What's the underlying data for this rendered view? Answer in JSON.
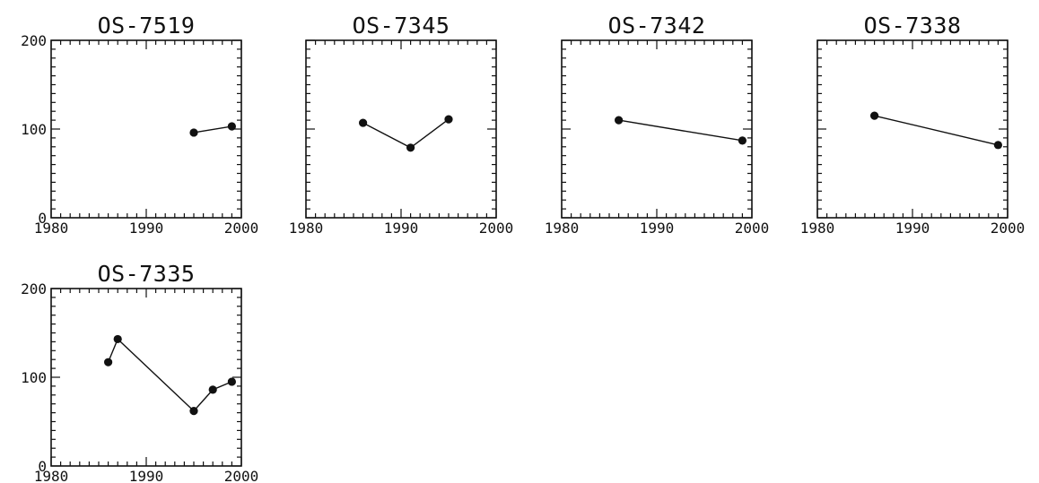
{
  "figure": {
    "ink_color": "#111111",
    "background": "#ffffff"
  },
  "chart_data": [
    {
      "type": "line",
      "title": "OS-7519",
      "xlabel": "",
      "ylabel": "",
      "xlim": [
        1980,
        2000
      ],
      "ylim": [
        0,
        200
      ],
      "xticks": [
        "1980",
        "1990",
        "2000"
      ],
      "yticks": [
        "0",
        "100",
        "200"
      ],
      "grid": false,
      "x": [
        1995,
        1999
      ],
      "y": [
        96,
        103
      ]
    },
    {
      "type": "line",
      "title": "OS-7345",
      "xlabel": "",
      "ylabel": "",
      "xlim": [
        1980,
        2000
      ],
      "ylim": [
        0,
        200
      ],
      "xticks": [
        "1980",
        "1990",
        "2000"
      ],
      "yticks": [],
      "grid": false,
      "x": [
        1986,
        1991,
        1995
      ],
      "y": [
        107,
        79,
        111
      ]
    },
    {
      "type": "line",
      "title": "OS-7342",
      "xlabel": "",
      "ylabel": "",
      "xlim": [
        1980,
        2000
      ],
      "ylim": [
        0,
        200
      ],
      "xticks": [
        "1980",
        "1990",
        "2000"
      ],
      "yticks": [],
      "grid": false,
      "x": [
        1986,
        1999
      ],
      "y": [
        110,
        87
      ]
    },
    {
      "type": "line",
      "title": "OS-7338",
      "xlabel": "",
      "ylabel": "",
      "xlim": [
        1980,
        2000
      ],
      "ylim": [
        0,
        200
      ],
      "xticks": [
        "1980",
        "1990",
        "2000"
      ],
      "yticks": [],
      "grid": false,
      "x": [
        1986,
        1999
      ],
      "y": [
        115,
        82
      ]
    },
    {
      "type": "line",
      "title": "OS-7335",
      "xlabel": "",
      "ylabel": "",
      "xlim": [
        1980,
        2000
      ],
      "ylim": [
        0,
        200
      ],
      "xticks": [
        "1980",
        "1990",
        "2000"
      ],
      "yticks": [
        "0",
        "100",
        "200"
      ],
      "grid": false,
      "x": [
        1986,
        1987,
        1995,
        1997,
        1999
      ],
      "y": [
        117,
        143,
        62,
        86,
        95
      ]
    }
  ]
}
